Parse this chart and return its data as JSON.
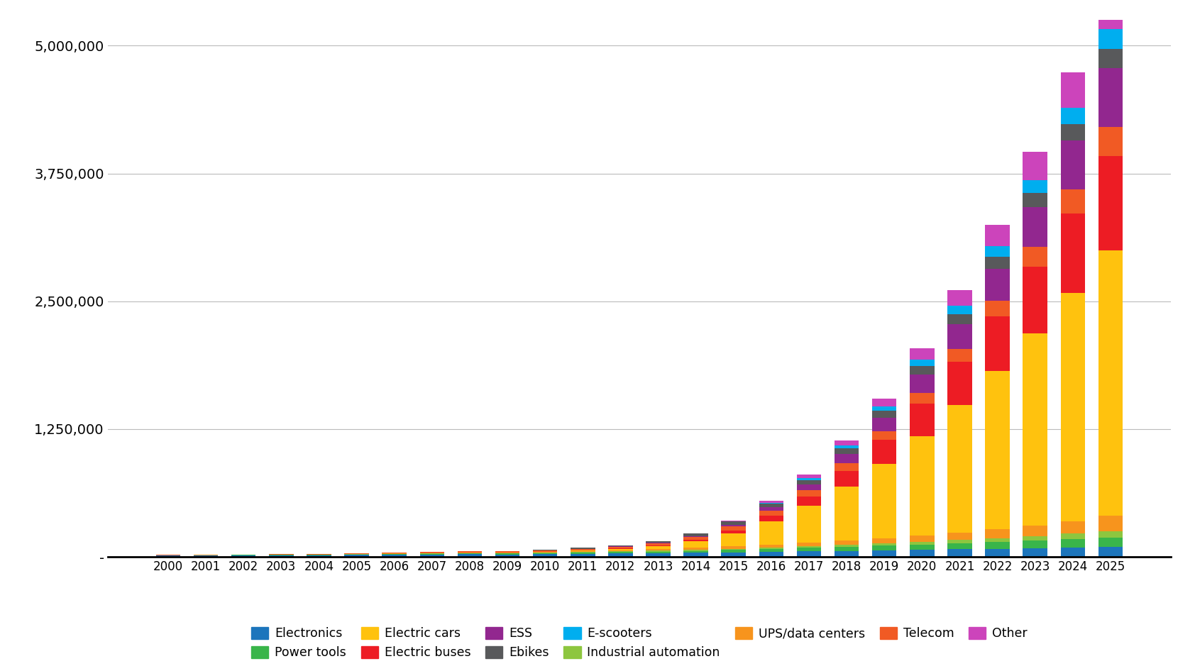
{
  "years": [
    2000,
    2001,
    2002,
    2003,
    2004,
    2005,
    2006,
    2007,
    2008,
    2009,
    2010,
    2011,
    2012,
    2013,
    2014,
    2015,
    2016,
    2017,
    2018,
    2019,
    2020,
    2021,
    2022,
    2023,
    2024,
    2025
  ],
  "segment_order": [
    "Electronics",
    "Power tools",
    "Industrial automation",
    "UPS/data centers",
    "Electric cars",
    "Electric buses",
    "Telecom",
    "ESS",
    "Ebikes",
    "E-scooters",
    "Other"
  ],
  "segments": {
    "Electronics": [
      15000,
      16000,
      17000,
      17000,
      18000,
      20000,
      22000,
      24000,
      26000,
      25000,
      27000,
      30000,
      33000,
      36000,
      40000,
      45000,
      50000,
      55000,
      60000,
      65000,
      70000,
      75000,
      80000,
      85000,
      90000,
      95000
    ],
    "Power tools": [
      1000,
      1500,
      2000,
      2500,
      3000,
      4000,
      5500,
      7000,
      8000,
      8500,
      10000,
      12000,
      14000,
      17000,
      20000,
      24000,
      28000,
      33000,
      38000,
      44000,
      50000,
      57000,
      65000,
      74000,
      84000,
      95000
    ],
    "Industrial automation": [
      500,
      700,
      900,
      1100,
      1300,
      1700,
      2200,
      2800,
      3300,
      3600,
      4200,
      5200,
      6300,
      7600,
      9200,
      11000,
      13500,
      16500,
      20000,
      24000,
      28000,
      33000,
      39000,
      46000,
      54000,
      64000
    ],
    "UPS/data centers": [
      1000,
      1300,
      1600,
      2000,
      2400,
      3100,
      4000,
      5000,
      6200,
      6800,
      8000,
      10000,
      12500,
      15500,
      19000,
      23000,
      28000,
      34000,
      41000,
      50000,
      60000,
      72000,
      86000,
      103000,
      123000,
      147000
    ],
    "Electric cars": [
      0,
      0,
      0,
      0,
      0,
      0,
      0,
      500,
      1500,
      2000,
      3000,
      6000,
      13000,
      28000,
      65000,
      130000,
      230000,
      360000,
      530000,
      730000,
      970000,
      1250000,
      1550000,
      1880000,
      2230000,
      2600000
    ],
    "Electric buses": [
      0,
      0,
      0,
      0,
      0,
      0,
      0,
      0,
      0,
      0,
      500,
      1200,
      2800,
      6000,
      13000,
      28000,
      55000,
      95000,
      155000,
      230000,
      320000,
      420000,
      530000,
      650000,
      780000,
      920000
    ],
    "Telecom": [
      2000,
      2500,
      3000,
      3500,
      4200,
      5200,
      6500,
      8000,
      10000,
      11000,
      13000,
      16000,
      20000,
      25000,
      31000,
      38000,
      47000,
      58000,
      72000,
      88000,
      107000,
      130000,
      158000,
      192000,
      233000,
      282000
    ],
    "ESS": [
      0,
      0,
      0,
      0,
      0,
      0,
      0,
      0,
      0,
      0,
      200,
      500,
      1200,
      2800,
      7000,
      16000,
      32000,
      55000,
      88000,
      130000,
      180000,
      240000,
      310000,
      390000,
      480000,
      580000
    ],
    "Ebikes": [
      0,
      0,
      0,
      0,
      0,
      0,
      500,
      1200,
      2400,
      3200,
      5000,
      8000,
      12000,
      17000,
      23000,
      30000,
      38000,
      47000,
      58000,
      70000,
      84000,
      100000,
      118000,
      138000,
      160000,
      185000
    ],
    "E-scooters": [
      0,
      0,
      0,
      0,
      0,
      0,
      0,
      0,
      0,
      0,
      0,
      0,
      0,
      0,
      1000,
      4000,
      9000,
      17000,
      28000,
      42000,
      60000,
      80000,
      103000,
      130000,
      160000,
      193000
    ],
    "Other": [
      0,
      0,
      0,
      0,
      0,
      0,
      0,
      0,
      0,
      0,
      0,
      0,
      500,
      1200,
      3500,
      9000,
      18000,
      32000,
      52000,
      77000,
      111000,
      155000,
      210000,
      275000,
      346000,
      430000
    ]
  },
  "segment_colors": {
    "Electronics": "#29ABE2",
    "Power tools": "#39B54A",
    "Industrial automation": "#8DC63F",
    "UPS/data centers": "#F7941D",
    "Electric cars": "#FFC20E",
    "Electric buses": "#ED1C24",
    "Telecom": "#F15A24",
    "ESS": "#92278F",
    "Ebikes": "#58595B",
    "E-scooters": "#29ABE2",
    "Other": "#CC44BB"
  },
  "ylim": [
    0,
    5250000
  ],
  "yticks": [
    0,
    1250000,
    2500000,
    3750000,
    5000000
  ],
  "ytick_labels": [
    "-",
    "1,250,000",
    "2,500,000",
    "3,750,000",
    "5,000,000"
  ],
  "background_color": "#ffffff",
  "grid_color": "#bbbbbb",
  "legend_row1": [
    "Electronics",
    "Power tools",
    "Electric cars",
    "Electric buses",
    "ESS",
    "Ebikes",
    "E-scooters"
  ],
  "legend_row2": [
    "Industrial automation",
    "UPS/data centers",
    "Telecom",
    "Other"
  ]
}
